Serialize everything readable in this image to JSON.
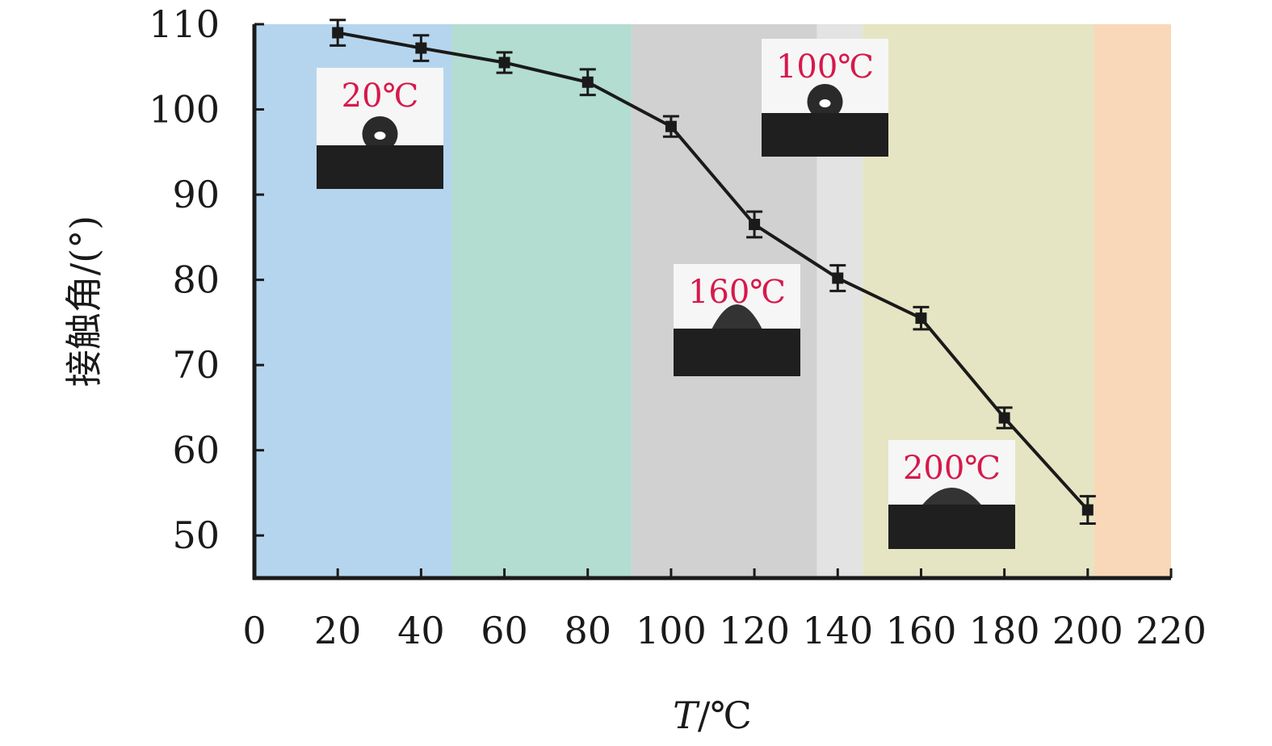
{
  "chart_data": {
    "type": "line",
    "xlabel_italic": "T",
    "xlabel_rest": "/℃",
    "ylabel": "接触角/(°)",
    "xlim": [
      0,
      220
    ],
    "ylim": [
      45,
      110
    ],
    "x_ticks": [
      0,
      20,
      40,
      60,
      80,
      100,
      120,
      140,
      160,
      180,
      200,
      220
    ],
    "y_ticks": [
      50,
      60,
      70,
      80,
      90,
      100,
      110
    ],
    "grid": false,
    "series": [
      {
        "x": [
          20,
          40,
          60,
          80,
          100,
          120,
          140,
          160,
          180,
          200
        ],
        "y": [
          109,
          107.2,
          105.5,
          103.2,
          98,
          86.5,
          80.2,
          75.5,
          63.8,
          53
        ],
        "error": [
          1.5,
          1.5,
          1.2,
          1.5,
          1.2,
          1.5,
          1.5,
          1.3,
          1.2,
          1.6
        ],
        "color": "#1a1a1a"
      }
    ],
    "regions": [
      {
        "x0": 0,
        "x1": 47.5,
        "color": "#b5d5ee"
      },
      {
        "x0": 47.5,
        "x1": 90.5,
        "color": "#b2ddd0"
      },
      {
        "x0": 90.5,
        "x1": 135,
        "color": "#d1d1d1"
      },
      {
        "x0": 135,
        "x1": 146,
        "color": "#e3e3e3"
      },
      {
        "x0": 146,
        "x1": 201.5,
        "color": "#e5e5c4"
      },
      {
        "x0": 201.5,
        "x1": 220,
        "color": "#f9d8b9"
      }
    ],
    "insets": [
      {
        "label": "20℃",
        "droplet": "sphere"
      },
      {
        "label": "100℃",
        "droplet": "sphere"
      },
      {
        "label": "160℃",
        "droplet": "cap"
      },
      {
        "label": "200℃",
        "droplet": "flat"
      }
    ]
  }
}
